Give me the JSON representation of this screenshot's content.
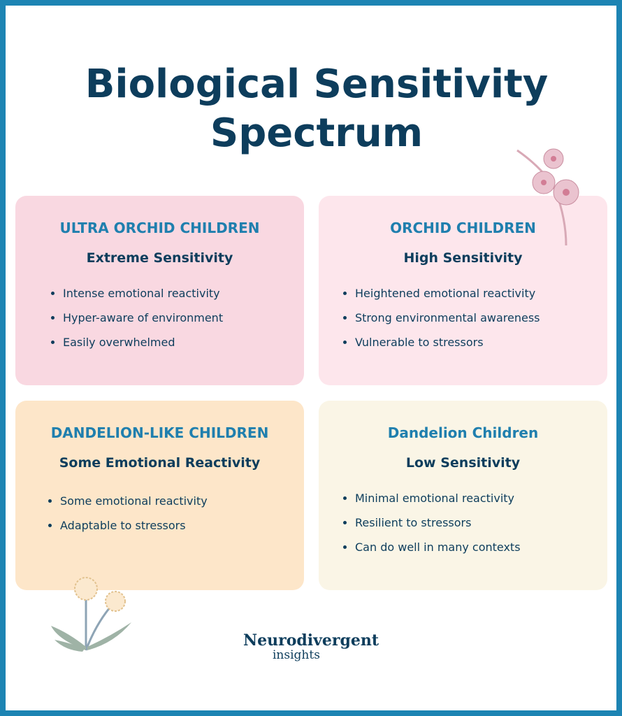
{
  "title": "Biological Sensitivity Spectrum",
  "cards": [
    {
      "heading": "ULTRA ORCHID CHILDREN",
      "subheading": "Extreme Sensitivity",
      "items": [
        "Intense emotional reactivity",
        "Hyper-aware of environment",
        "Easily overwhelmed"
      ]
    },
    {
      "heading": "ORCHID CHILDREN",
      "subheading": "High Sensitivity",
      "items": [
        "Heightened emotional reactivity",
        "Strong environmental awareness",
        "Vulnerable to stressors"
      ]
    },
    {
      "heading": "DANDELION-LIKE CHILDREN",
      "subheading": "Some Emotional Reactivity",
      "items": [
        "Some emotional reactivity",
        "Adaptable to stressors"
      ]
    },
    {
      "heading": "Dandelion Children",
      "subheading": "Low Sensitivity",
      "items": [
        "Minimal emotional reactivity",
        "Resilient to stressors",
        "Can do well in many contexts"
      ]
    }
  ],
  "logo": {
    "name": "Neurodivergent",
    "tagline": "insights"
  }
}
